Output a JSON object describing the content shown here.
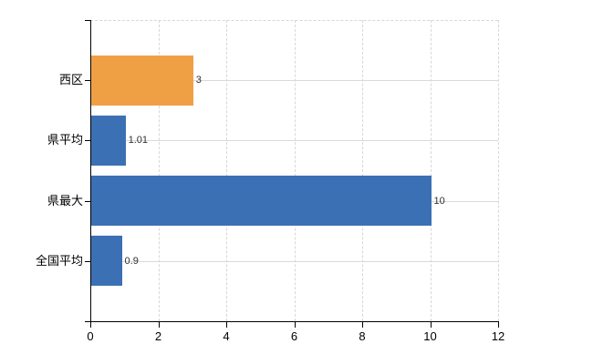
{
  "chart_data": {
    "type": "bar",
    "orientation": "horizontal",
    "title": "",
    "xlabel": "",
    "ylabel": "",
    "categories": [
      "西区",
      "県平均",
      "県最大",
      "全国平均"
    ],
    "values": [
      3,
      1.01,
      10,
      0.9
    ],
    "value_labels": [
      "3",
      "1.01",
      "10",
      "0.9"
    ],
    "bar_colors": [
      "#F0A044",
      "#3C70B4",
      "#3C70B4",
      "#3C70B4"
    ],
    "xlim": [
      0,
      12
    ],
    "x_ticks": [
      "0",
      "2",
      "4",
      "6",
      "8",
      "10",
      "12"
    ],
    "x_tick_values": [
      0,
      2,
      4,
      6,
      8,
      10,
      12
    ],
    "grid": "on",
    "legend": "none"
  },
  "colors": {
    "bar_orange": "#F0A044",
    "bar_blue": "#3C70B4",
    "grid_vertical": "#D7D7D7",
    "grid_horizontal": "#D6DCD6",
    "axis": "#000000",
    "value_label_text": "#303030",
    "tick_label_text": "#000000",
    "background": "#FFFFFF"
  }
}
